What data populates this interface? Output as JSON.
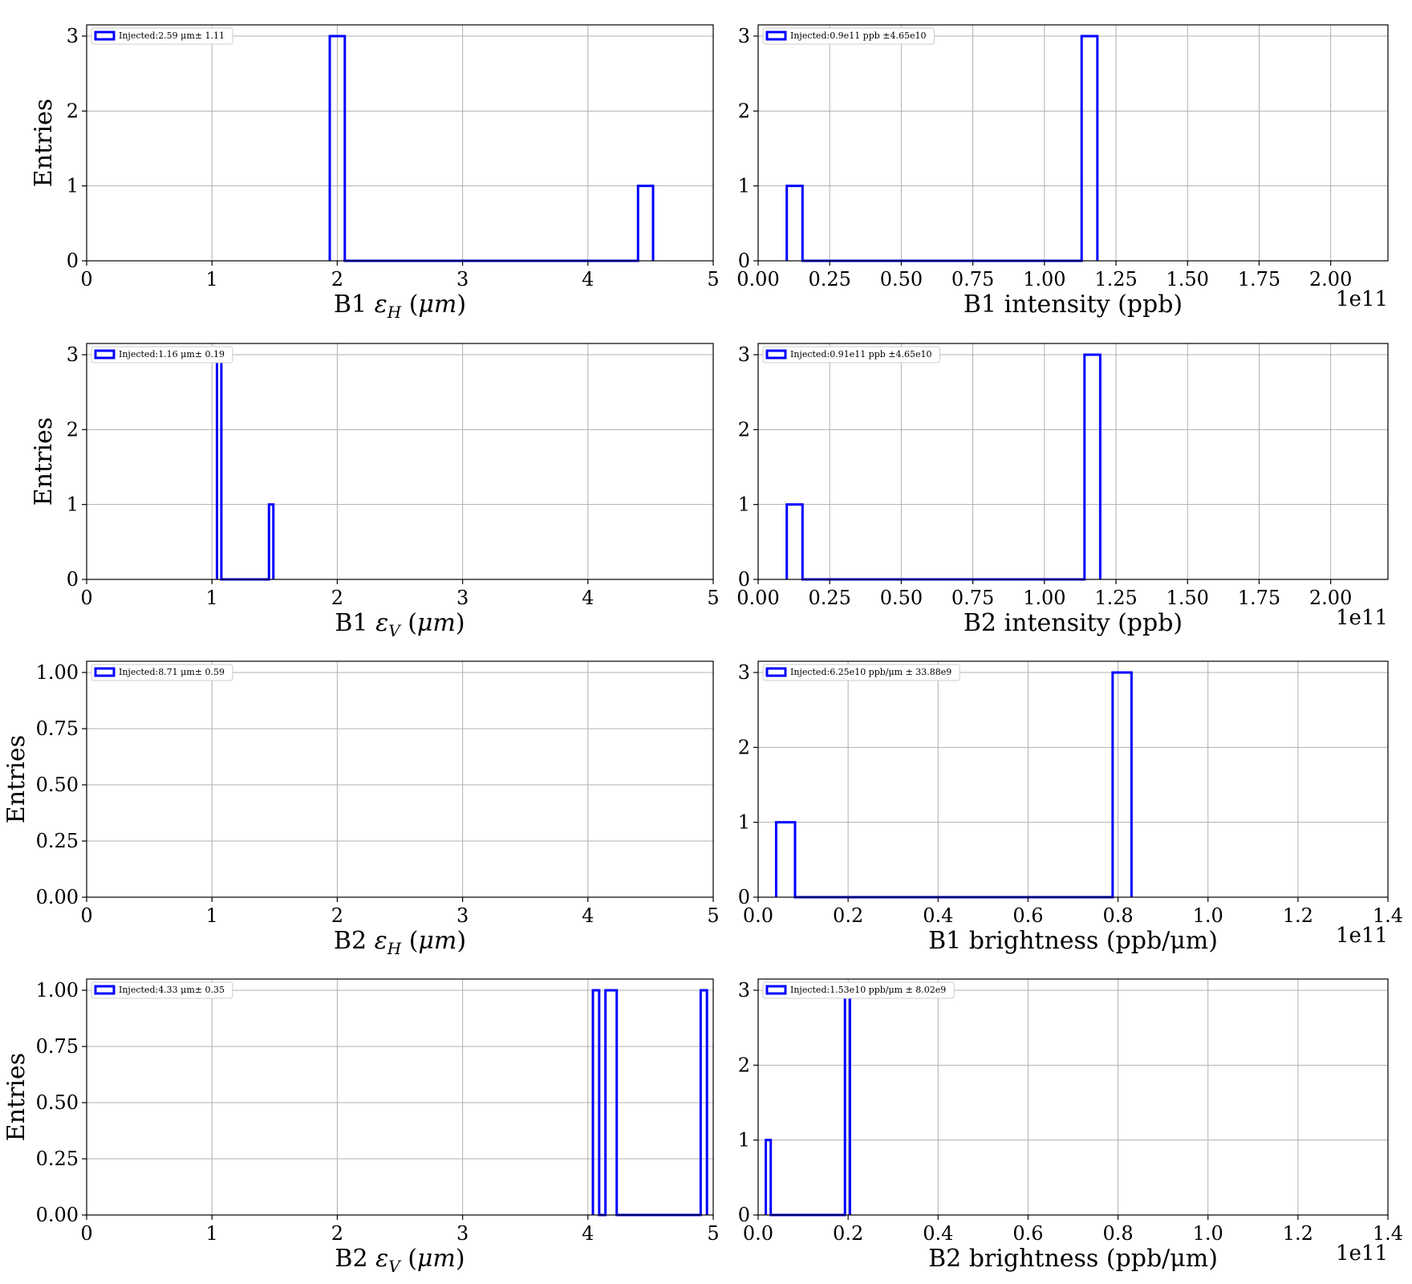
{
  "colors": {
    "series": "#0000ff",
    "grid": "#b0b0b0"
  },
  "chart_data": [
    {
      "type": "bar",
      "subtype": "step-histogram",
      "xlabel": "B1 εH (μm)",
      "ylabel": "Entries",
      "xlim": [
        0,
        5
      ],
      "ylim": [
        0,
        3.15
      ],
      "xticks": [
        0,
        1,
        2,
        3,
        4,
        5
      ],
      "xtick_labels": [
        "0",
        "1",
        "2",
        "3",
        "4",
        "5"
      ],
      "yticks": [
        0,
        1,
        2,
        3
      ],
      "ytick_labels": [
        "0",
        "1",
        "2",
        "3"
      ],
      "x_offset_text": "",
      "grid": true,
      "legend_placement": "upper-left",
      "legend": "Injected:2.59 μm± 1.11",
      "bins": [
        {
          "x0": 1.94,
          "x1": 2.06,
          "count": 3
        },
        {
          "x0": 4.4,
          "x1": 4.52,
          "count": 1
        }
      ]
    },
    {
      "type": "bar",
      "subtype": "step-histogram",
      "xlabel": "B1 intensity (ppb)",
      "ylabel": "",
      "xlim": [
        0,
        2.2
      ],
      "ylim": [
        0,
        3.15
      ],
      "xticks": [
        0,
        0.25,
        0.5,
        0.75,
        1.0,
        1.25,
        1.5,
        1.75,
        2.0
      ],
      "xtick_labels": [
        "0.00",
        "0.25",
        "0.50",
        "0.75",
        "1.00",
        "1.25",
        "1.50",
        "1.75",
        "2.00"
      ],
      "yticks": [
        0,
        1,
        2,
        3
      ],
      "ytick_labels": [
        "0",
        "1",
        "2",
        "3"
      ],
      "x_offset_text": "1e11",
      "grid": true,
      "legend_placement": "upper-left",
      "legend": "Injected:0.9e11 ppb ±4.65e10",
      "bins": [
        {
          "x0": 0.1,
          "x1": 0.155,
          "count": 1
        },
        {
          "x0": 1.13,
          "x1": 1.185,
          "count": 3
        }
      ]
    },
    {
      "type": "bar",
      "subtype": "step-histogram",
      "xlabel": "B1 εV (μm)",
      "ylabel": "Entries",
      "xlim": [
        0,
        5
      ],
      "ylim": [
        0,
        3.15
      ],
      "xticks": [
        0,
        1,
        2,
        3,
        4,
        5
      ],
      "xtick_labels": [
        "0",
        "1",
        "2",
        "3",
        "4",
        "5"
      ],
      "yticks": [
        0,
        1,
        2,
        3
      ],
      "ytick_labels": [
        "0",
        "1",
        "2",
        "3"
      ],
      "x_offset_text": "",
      "grid": true,
      "legend_placement": "upper-left",
      "legend": "Injected:1.16 μm± 0.19",
      "bins": [
        {
          "x0": 1.04,
          "x1": 1.075,
          "count": 3
        },
        {
          "x0": 1.455,
          "x1": 1.49,
          "count": 1
        }
      ]
    },
    {
      "type": "bar",
      "subtype": "step-histogram",
      "xlabel": "B2 intensity (ppb)",
      "ylabel": "",
      "xlim": [
        0,
        2.2
      ],
      "ylim": [
        0,
        3.15
      ],
      "xticks": [
        0,
        0.25,
        0.5,
        0.75,
        1.0,
        1.25,
        1.5,
        1.75,
        2.0
      ],
      "xtick_labels": [
        "0.00",
        "0.25",
        "0.50",
        "0.75",
        "1.00",
        "1.25",
        "1.50",
        "1.75",
        "2.00"
      ],
      "yticks": [
        0,
        1,
        2,
        3
      ],
      "ytick_labels": [
        "0",
        "1",
        "2",
        "3"
      ],
      "x_offset_text": "1e11",
      "grid": true,
      "legend_placement": "upper-left",
      "legend": "Injected:0.91e11 ppb ±4.65e10",
      "bins": [
        {
          "x0": 0.1,
          "x1": 0.155,
          "count": 1
        },
        {
          "x0": 1.14,
          "x1": 1.195,
          "count": 3
        }
      ]
    },
    {
      "type": "bar",
      "subtype": "step-histogram",
      "xlabel": "B2 εH (μm)",
      "ylabel": "Entries",
      "xlim": [
        0,
        5
      ],
      "ylim": [
        0,
        1.05
      ],
      "xticks": [
        0,
        1,
        2,
        3,
        4,
        5
      ],
      "xtick_labels": [
        "0",
        "1",
        "2",
        "3",
        "4",
        "5"
      ],
      "yticks": [
        0,
        0.25,
        0.5,
        0.75,
        1.0
      ],
      "ytick_labels": [
        "0.00",
        "0.25",
        "0.50",
        "0.75",
        "1.00"
      ],
      "x_offset_text": "",
      "grid": true,
      "legend_placement": "upper-left",
      "legend": "Injected:8.71 μm± 0.59",
      "bins": []
    },
    {
      "type": "bar",
      "subtype": "step-histogram",
      "xlabel": "B1 brightness (ppb/μm)",
      "ylabel": "",
      "xlim": [
        0,
        1.4
      ],
      "ylim": [
        0,
        3.15
      ],
      "xticks": [
        0,
        0.2,
        0.4,
        0.6,
        0.8,
        1.0,
        1.2,
        1.4
      ],
      "xtick_labels": [
        "0.0",
        "0.2",
        "0.4",
        "0.6",
        "0.8",
        "1.0",
        "1.2",
        "1.4"
      ],
      "yticks": [
        0,
        1,
        2,
        3
      ],
      "ytick_labels": [
        "0",
        "1",
        "2",
        "3"
      ],
      "x_offset_text": "1e11",
      "grid": true,
      "legend_placement": "upper-left",
      "legend": "Injected:6.25e10 ppb/μm ± 33.88e9",
      "bins": [
        {
          "x0": 0.04,
          "x1": 0.082,
          "count": 1
        },
        {
          "x0": 0.788,
          "x1": 0.83,
          "count": 3
        }
      ]
    },
    {
      "type": "bar",
      "subtype": "step-histogram",
      "xlabel": "B2 εV (μm)",
      "ylabel": "Entries",
      "xlim": [
        0,
        5
      ],
      "ylim": [
        0,
        1.05
      ],
      "xticks": [
        0,
        1,
        2,
        3,
        4,
        5
      ],
      "xtick_labels": [
        "0",
        "1",
        "2",
        "3",
        "4",
        "5"
      ],
      "yticks": [
        0,
        0.25,
        0.5,
        0.75,
        1.0
      ],
      "ytick_labels": [
        "0.00",
        "0.25",
        "0.50",
        "0.75",
        "1.00"
      ],
      "x_offset_text": "",
      "grid": true,
      "legend_placement": "upper-left",
      "legend": "Injected:4.33 μm± 0.35",
      "bins": [
        {
          "x0": 4.04,
          "x1": 4.09,
          "count": 1
        },
        {
          "x0": 4.14,
          "x1": 4.23,
          "count": 1
        },
        {
          "x0": 4.9,
          "x1": 4.95,
          "count": 1
        }
      ]
    },
    {
      "type": "bar",
      "subtype": "step-histogram",
      "xlabel": "B2 brightness (ppb/μm)",
      "ylabel": "",
      "xlim": [
        0,
        1.4
      ],
      "ylim": [
        0,
        3.15
      ],
      "xticks": [
        0,
        0.2,
        0.4,
        0.6,
        0.8,
        1.0,
        1.2,
        1.4
      ],
      "xtick_labels": [
        "0.0",
        "0.2",
        "0.4",
        "0.6",
        "0.8",
        "1.0",
        "1.2",
        "1.4"
      ],
      "yticks": [
        0,
        1,
        2,
        3
      ],
      "ytick_labels": [
        "0",
        "1",
        "2",
        "3"
      ],
      "x_offset_text": "1e11",
      "grid": true,
      "legend_placement": "upper-left",
      "legend": "Injected:1.53e10 ppb/μm ± 8.02e9",
      "bins": [
        {
          "x0": 0.017,
          "x1": 0.028,
          "count": 1
        },
        {
          "x0": 0.193,
          "x1": 0.204,
          "count": 3
        }
      ]
    }
  ]
}
